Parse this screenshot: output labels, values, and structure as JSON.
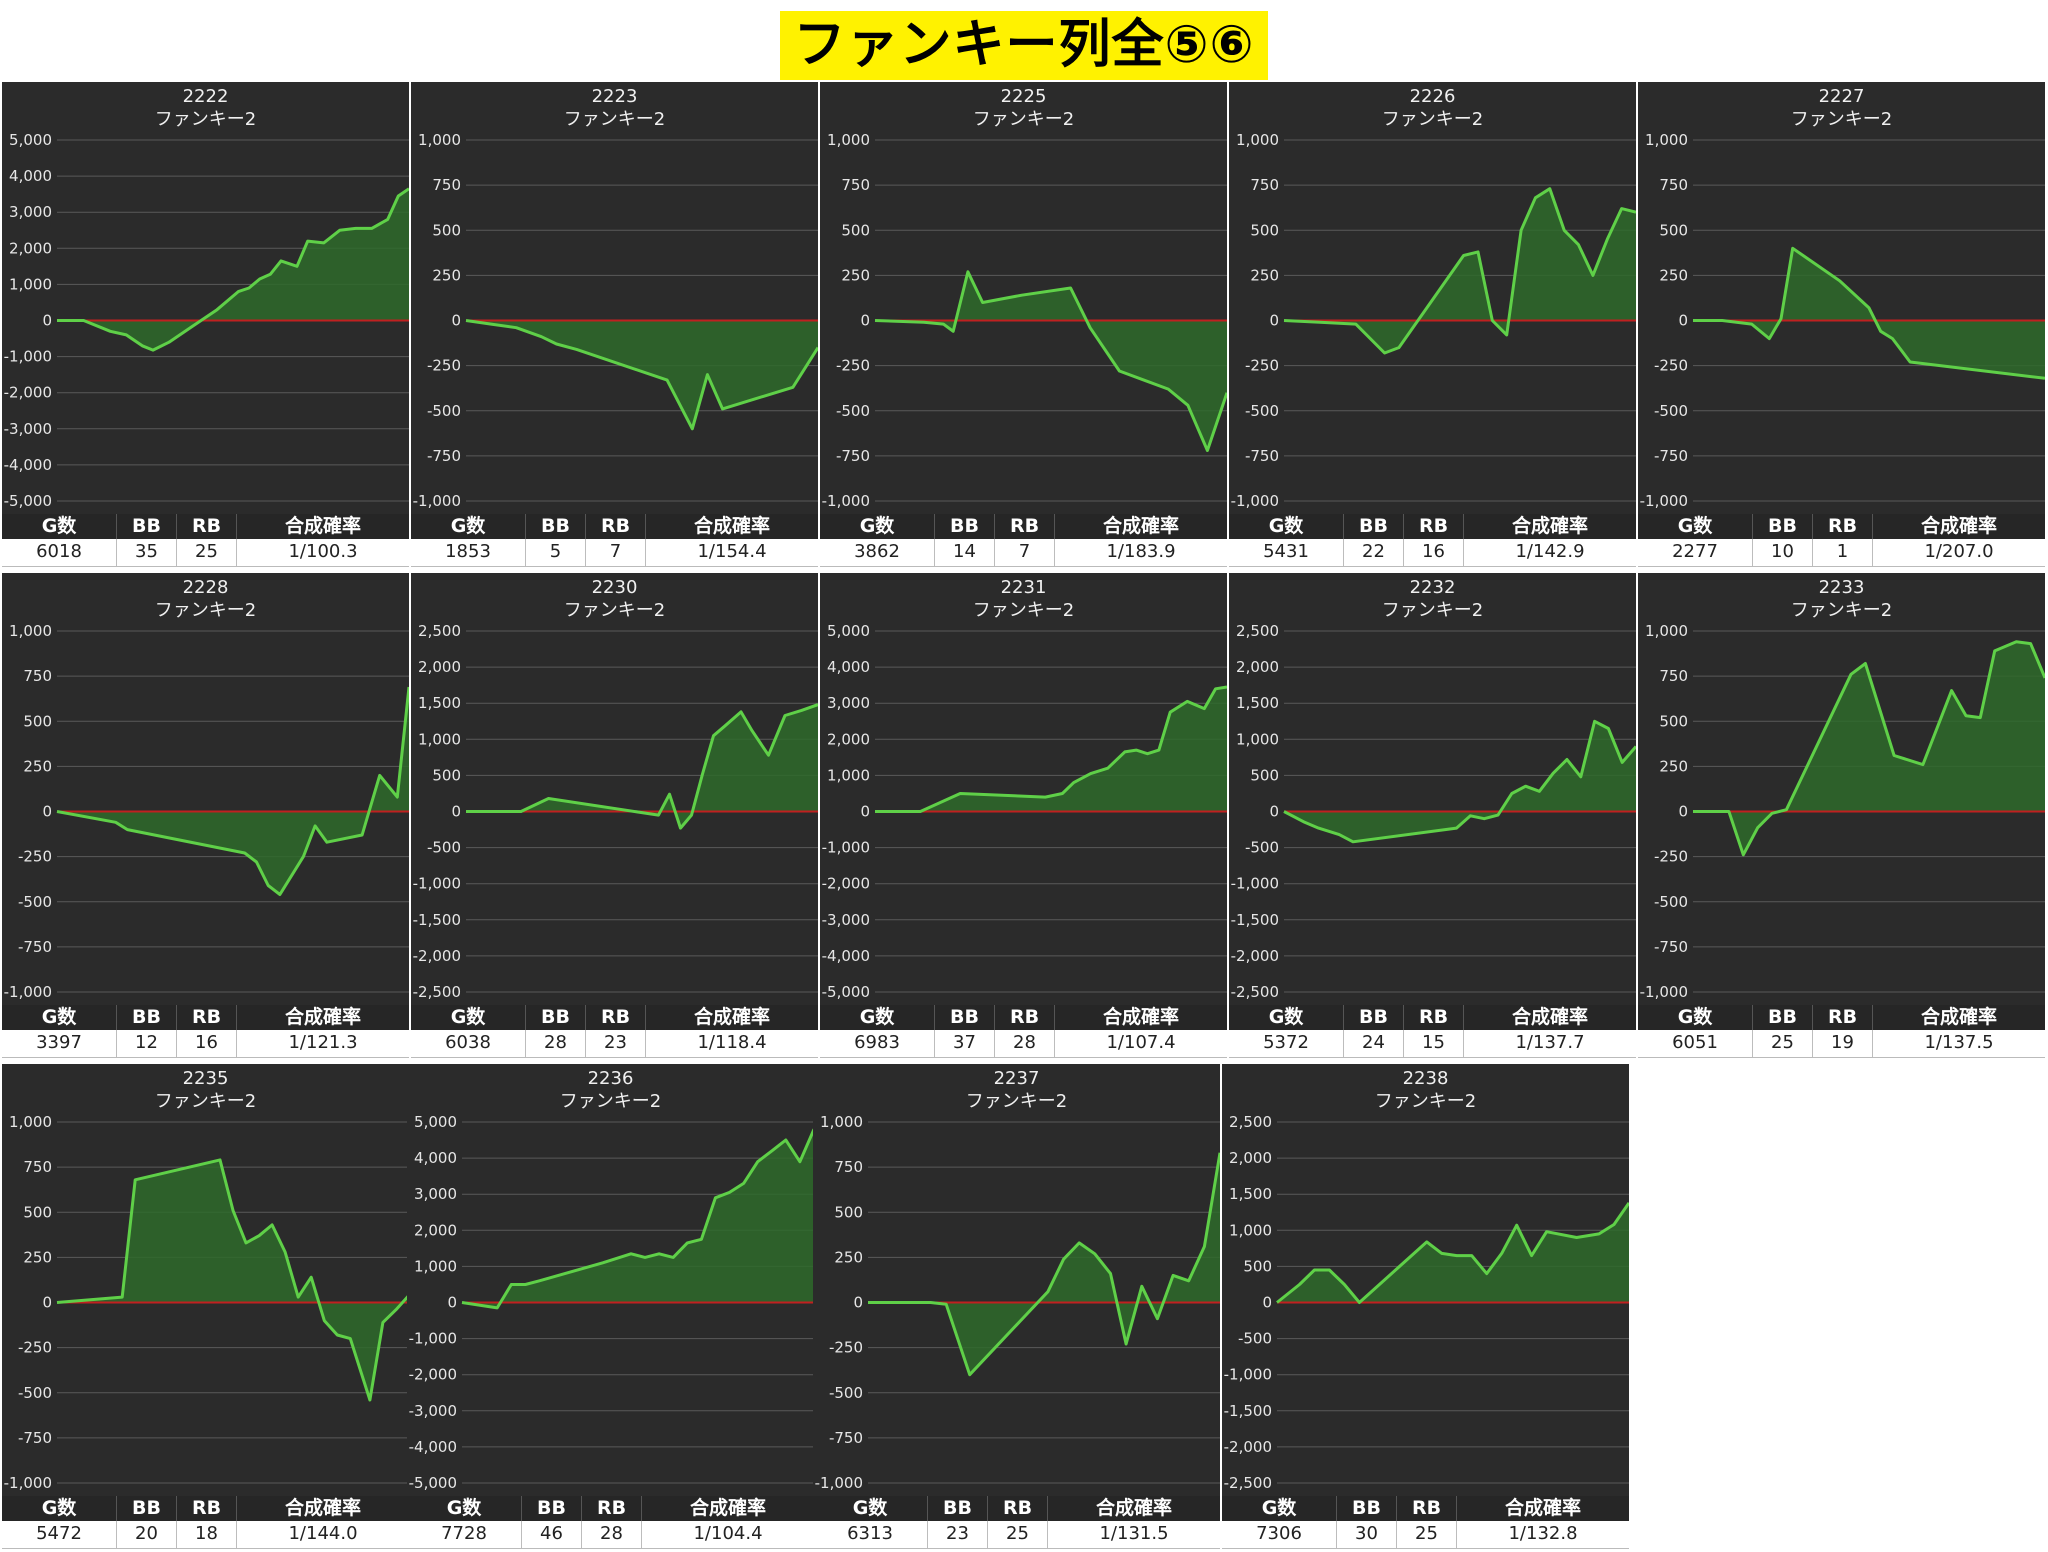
{
  "page_title": "ファンキー列全⑤⑥",
  "stats_headers": [
    "G数",
    "BB",
    "RB",
    "合成確率"
  ],
  "colors": {
    "line": "#5fd048",
    "fill": "#2e6a2a",
    "zero_line": "#c02020",
    "grid": "#5a5a5a",
    "background": "#2b2b2b"
  },
  "chart_data": [
    {
      "type": "area",
      "title": "2222",
      "subtitle": "ファンキー2",
      "ylim": [
        -5000,
        5000
      ],
      "yticks": [
        "5,000",
        "4,000",
        "3,000",
        "2,000",
        "1,000",
        "0",
        "-1,000",
        "-2,000",
        "-3,000",
        "-4,000",
        "-5,000"
      ],
      "x": [
        0,
        5,
        10,
        13,
        16,
        18,
        21,
        25,
        30,
        34,
        36,
        38,
        40,
        42,
        45,
        47,
        50,
        53,
        56,
        59,
        62,
        64,
        66
      ],
      "y": [
        0,
        0,
        -300,
        -400,
        -700,
        -820,
        -600,
        -200,
        300,
        800,
        900,
        1150,
        1280,
        1650,
        1500,
        2200,
        2150,
        2500,
        2550,
        2550,
        2800,
        3450,
        3650
      ],
      "stats": {
        "g": "6018",
        "bb": "35",
        "rb": "25",
        "prob": "1/100.3"
      }
    },
    {
      "type": "area",
      "title": "2223",
      "subtitle": "ファンキー2",
      "ylim": [
        -1000,
        1000
      ],
      "yticks": [
        "1,000",
        "750",
        "500",
        "250",
        "0",
        "-250",
        "-500",
        "-750",
        "-1,000"
      ],
      "x": [
        0,
        5,
        10,
        15,
        18,
        22,
        40,
        45,
        48,
        51,
        65,
        70
      ],
      "y": [
        0,
        -20,
        -40,
        -90,
        -130,
        -160,
        -330,
        -600,
        -300,
        -490,
        -370,
        -150
      ],
      "stats": {
        "g": "1853",
        "bb": "5",
        "rb": "7",
        "prob": "1/154.4"
      }
    },
    {
      "type": "area",
      "title": "2225",
      "subtitle": "ファンキー2",
      "ylim": [
        -1000,
        1000
      ],
      "yticks": [
        "1,000",
        "750",
        "500",
        "250",
        "0",
        "-250",
        "-500",
        "-750",
        "-1,000"
      ],
      "x": [
        0,
        5,
        10,
        14,
        16,
        19,
        22,
        30,
        40,
        44,
        50,
        60,
        64,
        68,
        72
      ],
      "y": [
        0,
        -5,
        -10,
        -20,
        -60,
        270,
        100,
        140,
        180,
        -40,
        -280,
        -380,
        -470,
        -720,
        -400
      ],
      "stats": {
        "g": "3862",
        "bb": "14",
        "rb": "7",
        "prob": "1/183.9"
      }
    },
    {
      "type": "area",
      "title": "2226",
      "subtitle": "ファンキー2",
      "ylim": [
        -1000,
        1000
      ],
      "yticks": [
        "1,000",
        "750",
        "500",
        "250",
        "0",
        "-250",
        "-500",
        "-750",
        "-1,000"
      ],
      "x": [
        0,
        5,
        10,
        14,
        16,
        25,
        27,
        29,
        31,
        33,
        35,
        37,
        39,
        41,
        43,
        45,
        47,
        49
      ],
      "y": [
        0,
        -10,
        -20,
        -180,
        -150,
        360,
        380,
        0,
        -80,
        500,
        680,
        730,
        500,
        420,
        250,
        450,
        620,
        600
      ],
      "stats": {
        "g": "5431",
        "bb": "22",
        "rb": "16",
        "prob": "1/142.9"
      }
    },
    {
      "type": "area",
      "title": "2227",
      "subtitle": "ファンキー2",
      "ylim": [
        -1000,
        1000
      ],
      "yticks": [
        "1,000",
        "750",
        "500",
        "250",
        "0",
        "-250",
        "-500",
        "-750",
        "-1,000"
      ],
      "x": [
        0,
        5,
        10,
        13,
        15,
        17,
        25,
        30,
        32,
        34,
        37,
        60
      ],
      "y": [
        0,
        0,
        -20,
        -100,
        10,
        400,
        220,
        70,
        -60,
        -100,
        -230,
        -320
      ],
      "stats": {
        "g": "2277",
        "bb": "10",
        "rb": "1",
        "prob": "1/207.0"
      }
    },
    {
      "type": "area",
      "title": "2228",
      "subtitle": "ファンキー2",
      "ylim": [
        -1000,
        1000
      ],
      "yticks": [
        "1,000",
        "750",
        "500",
        "250",
        "0",
        "-250",
        "-500",
        "-750",
        "-1,000"
      ],
      "x": [
        0,
        10,
        12,
        32,
        34,
        36,
        38,
        42,
        44,
        46,
        52,
        55,
        58,
        60
      ],
      "y": [
        0,
        -60,
        -100,
        -230,
        -280,
        -410,
        -460,
        -250,
        -80,
        -170,
        -130,
        200,
        80,
        690
      ],
      "stats": {
        "g": "3397",
        "bb": "12",
        "rb": "16",
        "prob": "1/121.3"
      }
    },
    {
      "type": "area",
      "title": "2230",
      "subtitle": "ファンキー2",
      "ylim": [
        -2500,
        2500
      ],
      "yticks": [
        "2,500",
        "2,000",
        "1,500",
        "1,000",
        "500",
        "0",
        "-500",
        "-1,000",
        "-1,500",
        "-2,000",
        "-2,500"
      ],
      "x": [
        0,
        10,
        15,
        35,
        37,
        39,
        41,
        43,
        45,
        47,
        50,
        52,
        55,
        58,
        61,
        64
      ],
      "y": [
        0,
        0,
        180,
        -50,
        240,
        -230,
        -50,
        520,
        1050,
        1180,
        1380,
        1120,
        780,
        1330,
        1400,
        1480
      ],
      "stats": {
        "g": "6038",
        "bb": "28",
        "rb": "23",
        "prob": "1/118.4"
      }
    },
    {
      "type": "area",
      "title": "2231",
      "subtitle": "ファンキー2",
      "ylim": [
        -5000,
        5000
      ],
      "yticks": [
        "5,000",
        "4,000",
        "3,000",
        "2,000",
        "1,000",
        "0",
        "-1,000",
        "-2,000",
        "-3,000",
        "-4,000",
        "-5,000"
      ],
      "x": [
        0,
        8,
        15,
        30,
        33,
        35,
        38,
        41,
        44,
        46,
        48,
        50,
        52,
        55,
        58,
        60,
        62
      ],
      "y": [
        0,
        0,
        500,
        400,
        500,
        800,
        1050,
        1200,
        1650,
        1700,
        1600,
        1700,
        2750,
        3050,
        2850,
        3400,
        3450
      ],
      "stats": {
        "g": "6983",
        "bb": "37",
        "rb": "28",
        "prob": "1/107.4"
      }
    },
    {
      "type": "area",
      "title": "2232",
      "subtitle": "ファンキー2",
      "ylim": [
        -2500,
        2500
      ],
      "yticks": [
        "2,500",
        "2,000",
        "1,500",
        "1,000",
        "500",
        "0",
        "-500",
        "-1,000",
        "-1,500",
        "-2,000",
        "-2,500"
      ],
      "x": [
        0,
        3,
        5,
        8,
        10,
        25,
        27,
        29,
        31,
        33,
        35,
        37,
        39,
        41,
        43,
        45,
        47,
        49,
        51
      ],
      "y": [
        0,
        -150,
        -230,
        -320,
        -420,
        -230,
        -60,
        -100,
        -50,
        250,
        350,
        280,
        530,
        720,
        480,
        1250,
        1150,
        680,
        900
      ],
      "stats": {
        "g": "5372",
        "bb": "24",
        "rb": "15",
        "prob": "1/137.7"
      }
    },
    {
      "type": "area",
      "title": "2233",
      "subtitle": "ファンキー2",
      "ylim": [
        -1000,
        1000
      ],
      "yticks": [
        "1,000",
        "750",
        "500",
        "250",
        "0",
        "-250",
        "-500",
        "-750",
        "-1,000"
      ],
      "x": [
        0,
        5,
        7,
        9,
        11,
        13,
        22,
        24,
        28,
        32,
        36,
        38,
        40,
        42,
        45,
        47,
        49
      ],
      "y": [
        0,
        0,
        -240,
        -90,
        -10,
        10,
        760,
        820,
        310,
        260,
        670,
        530,
        520,
        890,
        940,
        930,
        740
      ],
      "stats": {
        "g": "6051",
        "bb": "25",
        "rb": "19",
        "prob": "1/137.5"
      }
    },
    {
      "type": "area",
      "title": "2235",
      "subtitle": "ファンキー2",
      "ylim": [
        -1000,
        1000
      ],
      "yticks": [
        "1,000",
        "750",
        "500",
        "250",
        "0",
        "-250",
        "-500",
        "-750",
        "-1,000"
      ],
      "x": [
        0,
        10,
        12,
        25,
        27,
        29,
        31,
        33,
        35,
        37,
        39,
        41,
        43,
        45,
        48,
        50,
        52,
        54
      ],
      "y": [
        0,
        30,
        680,
        790,
        510,
        330,
        370,
        430,
        280,
        30,
        140,
        -100,
        -180,
        -200,
        -540,
        -110,
        -40,
        40
      ],
      "stats": {
        "g": "5472",
        "bb": "20",
        "rb": "18",
        "prob": "1/144.0"
      }
    },
    {
      "type": "area",
      "title": "2236",
      "subtitle": "ファンキー2",
      "ylim": [
        -5000,
        5000
      ],
      "yticks": [
        "5,000",
        "4,000",
        "3,000",
        "2,000",
        "1,000",
        "0",
        "-1,000",
        "-2,000",
        "-3,000",
        "-4,000",
        "-5,000"
      ],
      "x": [
        0,
        5,
        7,
        9,
        11,
        20,
        24,
        26,
        28,
        30,
        32,
        34,
        36,
        38,
        40,
        42,
        44,
        46,
        48,
        50
      ],
      "y": [
        0,
        -150,
        500,
        500,
        600,
        1100,
        1350,
        1250,
        1350,
        1250,
        1650,
        1750,
        2900,
        3050,
        3300,
        3900,
        4200,
        4500,
        3900,
        4800
      ],
      "stats": {
        "g": "7728",
        "bb": "46",
        "rb": "28",
        "prob": "1/104.4"
      }
    },
    {
      "type": "area",
      "title": "2237",
      "subtitle": "ファンキー2",
      "ylim": [
        -1000,
        1000
      ],
      "yticks": [
        "1,000",
        "750",
        "500",
        "250",
        "0",
        "-250",
        "-500",
        "-750",
        "-1,000"
      ],
      "x": [
        0,
        8,
        10,
        13,
        23,
        25,
        27,
        29,
        31,
        33,
        35,
        37,
        39,
        41,
        43,
        45
      ],
      "y": [
        0,
        0,
        -10,
        -400,
        60,
        240,
        330,
        270,
        160,
        -230,
        90,
        -90,
        150,
        120,
        310,
        830
      ],
      "stats": {
        "g": "6313",
        "bb": "23",
        "rb": "25",
        "prob": "1/131.5"
      }
    },
    {
      "type": "area",
      "title": "2238",
      "subtitle": "ファンキー2",
      "ylim": [
        -2500,
        2500
      ],
      "yticks": [
        "2,500",
        "2,000",
        "1,500",
        "1,000",
        "500",
        "0",
        "-500",
        "-1,000",
        "-1,500",
        "-2,000",
        "-2,500"
      ],
      "x": [
        0,
        3,
        5,
        7,
        9,
        11,
        20,
        22,
        24,
        26,
        28,
        30,
        32,
        34,
        36,
        40,
        43,
        45,
        47
      ],
      "y": [
        0,
        250,
        450,
        450,
        250,
        0,
        840,
        680,
        650,
        650,
        400,
        680,
        1070,
        650,
        980,
        900,
        950,
        1080,
        1380
      ],
      "stats": {
        "g": "7306",
        "bb": "30",
        "rb": "25",
        "prob": "1/132.8"
      }
    }
  ]
}
